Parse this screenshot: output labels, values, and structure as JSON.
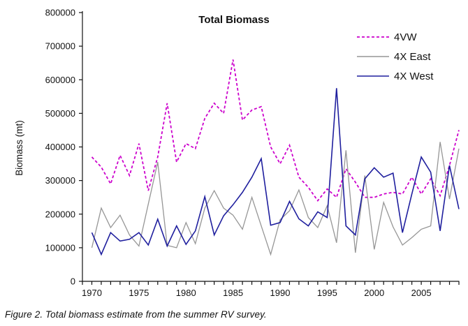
{
  "caption": "Figure 2. Total biomass estimate from the summer RV survey.",
  "chart_data": {
    "type": "line",
    "title": "Total Biomass",
    "xlabel": "",
    "ylabel": "Biomass (mt)",
    "ylim": [
      0,
      800000
    ],
    "ytick_step": 100000,
    "grid": false,
    "legend_position": "top-right",
    "x": [
      1970,
      1971,
      1972,
      1973,
      1974,
      1975,
      1976,
      1977,
      1978,
      1979,
      1980,
      1981,
      1982,
      1983,
      1984,
      1985,
      1986,
      1987,
      1988,
      1989,
      1990,
      1991,
      1992,
      1993,
      1994,
      1995,
      1996,
      1997,
      1998,
      1999,
      2000,
      2001,
      2002,
      2003,
      2004,
      2005,
      2006,
      2007,
      2008,
      2009
    ],
    "x_tick_labels": [
      1970,
      1975,
      1980,
      1985,
      1990,
      1995,
      2000,
      2005
    ],
    "series": [
      {
        "name": "4VW",
        "color": "#CC00CC",
        "line_style": "dashed",
        "values": [
          370000,
          340000,
          290000,
          375000,
          315000,
          410000,
          270000,
          370000,
          530000,
          355000,
          410000,
          395000,
          485000,
          530000,
          500000,
          660000,
          480000,
          510000,
          520000,
          400000,
          350000,
          405000,
          310000,
          280000,
          240000,
          275000,
          250000,
          335000,
          295000,
          250000,
          250000,
          260000,
          265000,
          260000,
          310000,
          260000,
          305000,
          255000,
          345000,
          450000
        ]
      },
      {
        "name": "4X East",
        "color": "#969696",
        "line_style": "solid",
        "values": [
          100000,
          218000,
          160000,
          197000,
          138000,
          105000,
          230000,
          355000,
          107000,
          100000,
          175000,
          112000,
          218000,
          270000,
          218000,
          197000,
          155000,
          250000,
          165000,
          80000,
          183000,
          210000,
          272000,
          190000,
          160000,
          225000,
          115000,
          390000,
          85000,
          315000,
          95000,
          235000,
          162000,
          108000,
          130000,
          155000,
          165000,
          415000,
          245000,
          395000
        ]
      },
      {
        "name": "4X West",
        "color": "#1F1F9E",
        "line_style": "solid",
        "values": [
          145000,
          80000,
          145000,
          120000,
          125000,
          145000,
          108000,
          185000,
          105000,
          165000,
          110000,
          150000,
          252000,
          138000,
          195000,
          228000,
          265000,
          310000,
          365000,
          167000,
          175000,
          238000,
          186000,
          165000,
          207000,
          190000,
          575000,
          165000,
          138000,
          305000,
          338000,
          310000,
          322000,
          145000,
          260000,
          370000,
          325000,
          150000,
          345000,
          215000
        ]
      }
    ]
  }
}
